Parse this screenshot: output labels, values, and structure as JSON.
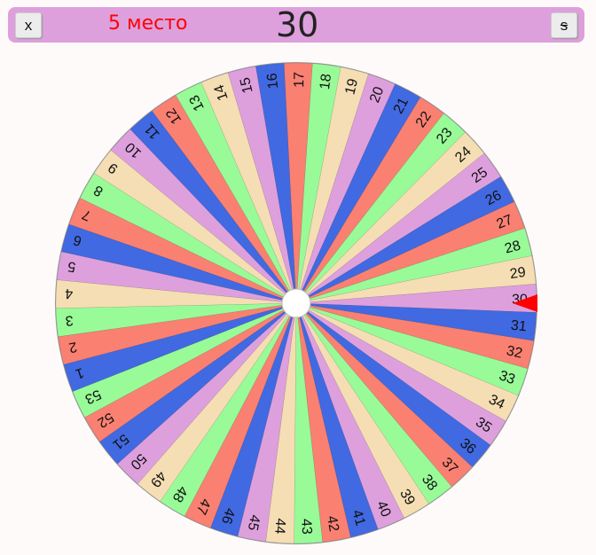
{
  "header": {
    "close_label": "x",
    "s_label": "s",
    "place": "5 место",
    "current_number": "30"
  },
  "wheel": {
    "segment_count": 53,
    "selected": 30,
    "color_cycle": [
      "#dda0dd",
      "#4169e1",
      "#fa8072",
      "#98fb98",
      "#f5deb3"
    ],
    "pointer_color": "#ff0000"
  }
}
